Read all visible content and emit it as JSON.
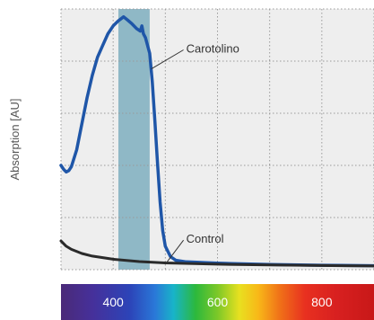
{
  "colors": {
    "carotolino": "#1f56a8",
    "control": "#2a2a2a",
    "highlight": "#8fb8c6",
    "plot_background": "#eeeeee",
    "grid": "#9a9a9a"
  },
  "chart_data": {
    "type": "line",
    "title": "",
    "xlabel": "",
    "ylabel": "Absorption [AU]",
    "xlim": [
      300,
      900
    ],
    "ylim": [
      0,
      1
    ],
    "x_ticks": [
      400,
      600,
      800
    ],
    "x_tick_labels": [
      "400",
      "600",
      "800"
    ],
    "grid": true,
    "x_axis_style": "visible-light spectrum bar",
    "highlight_band": {
      "x": [
        410,
        470
      ],
      "color": "#8fb8c6"
    },
    "series": [
      {
        "name": "Carotolino",
        "color": "#1f56a8",
        "points": [
          [
            300,
            0.4
          ],
          [
            305,
            0.385
          ],
          [
            310,
            0.375
          ],
          [
            315,
            0.38
          ],
          [
            320,
            0.395
          ],
          [
            330,
            0.46
          ],
          [
            340,
            0.56
          ],
          [
            350,
            0.66
          ],
          [
            360,
            0.745
          ],
          [
            370,
            0.815
          ],
          [
            380,
            0.86
          ],
          [
            390,
            0.905
          ],
          [
            400,
            0.935
          ],
          [
            410,
            0.955
          ],
          [
            420,
            0.97
          ],
          [
            428,
            0.957
          ],
          [
            435,
            0.945
          ],
          [
            445,
            0.925
          ],
          [
            452,
            0.915
          ],
          [
            455,
            0.935
          ],
          [
            458,
            0.905
          ],
          [
            462,
            0.89
          ],
          [
            470,
            0.83
          ],
          [
            475,
            0.72
          ],
          [
            480,
            0.57
          ],
          [
            485,
            0.41
          ],
          [
            490,
            0.26
          ],
          [
            495,
            0.15
          ],
          [
            500,
            0.09
          ],
          [
            510,
            0.05
          ],
          [
            520,
            0.036
          ],
          [
            540,
            0.03
          ],
          [
            600,
            0.025
          ],
          [
            700,
            0.02
          ],
          [
            800,
            0.017
          ],
          [
            900,
            0.015
          ]
        ]
      },
      {
        "name": "Control",
        "color": "#2a2a2a",
        "points": [
          [
            300,
            0.11
          ],
          [
            310,
            0.09
          ],
          [
            320,
            0.078
          ],
          [
            340,
            0.062
          ],
          [
            360,
            0.052
          ],
          [
            400,
            0.04
          ],
          [
            450,
            0.031
          ],
          [
            500,
            0.026
          ],
          [
            600,
            0.021
          ],
          [
            700,
            0.018
          ],
          [
            800,
            0.016
          ],
          [
            900,
            0.014
          ]
        ]
      }
    ],
    "annotations": [
      {
        "text": "Carotolino",
        "series": "Carotolino",
        "text_at": [
          540,
          0.85
        ],
        "points_to": [
          473,
          0.77
        ]
      },
      {
        "text": "Control",
        "series": "Control",
        "text_at": [
          540,
          0.12
        ],
        "points_to": [
          502,
          0.026
        ]
      }
    ]
  }
}
